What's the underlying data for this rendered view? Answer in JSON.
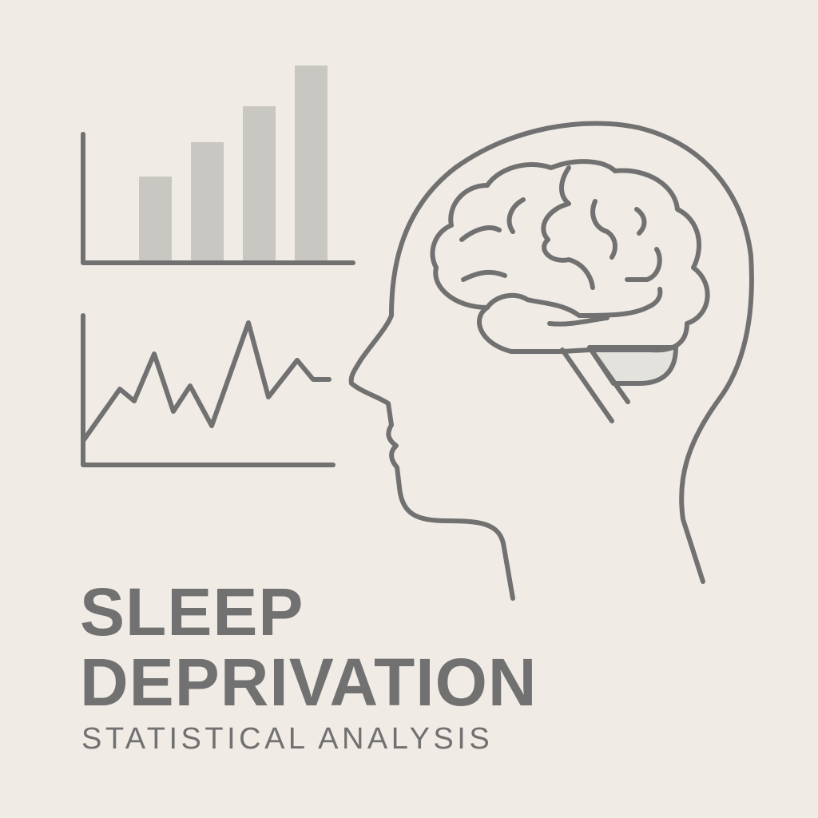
{
  "title": {
    "line1": "SLEEP",
    "line2": "DEPRIVATION"
  },
  "subtitle": "STATISTICAL ANALYSIS",
  "icons": {
    "bar_chart": "bar-chart-icon",
    "line_chart": "line-chart-icon",
    "head": "head-profile-icon",
    "brain": "brain-icon"
  },
  "colors": {
    "background": "#f0ebe5",
    "stroke": "#717171",
    "bar_fill": "#c9c7c2",
    "cerebellum_fill": "#e4e2dd",
    "text": "#717171"
  }
}
